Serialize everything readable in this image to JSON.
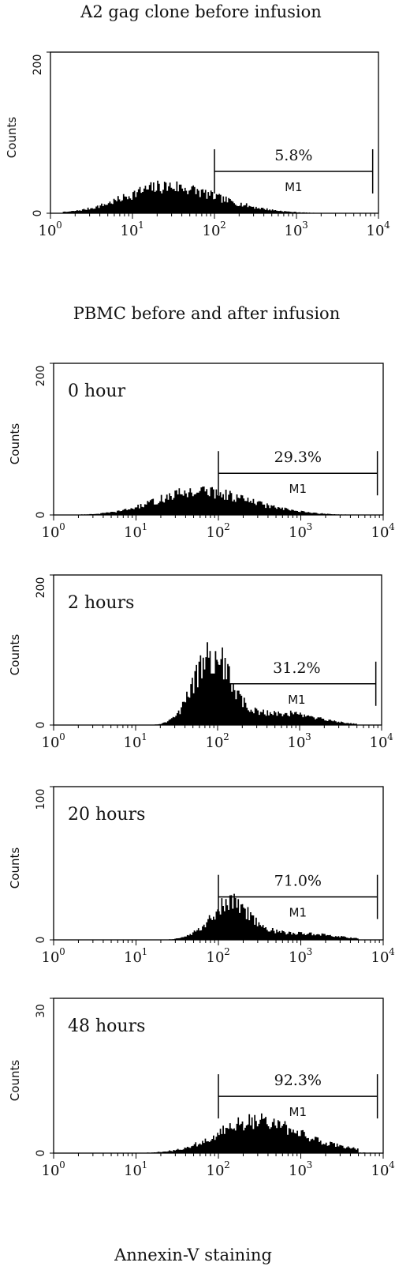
{
  "heading_top": "A2 gag clone before infusion",
  "heading_mid": "PBMC before and after infusion",
  "xlabel": "Annexin-V staining",
  "chart_data": [
    {
      "type": "histogram",
      "label": "",
      "ylabel": "Counts",
      "ylim": [
        0,
        200
      ],
      "yticks": [
        "0",
        "200"
      ],
      "xscale": "log",
      "xlim": [
        1,
        10000
      ],
      "xticks": [
        {
          "base": "10",
          "exp": "0"
        },
        {
          "base": "10",
          "exp": "1"
        },
        {
          "base": "10",
          "exp": "2"
        },
        {
          "base": "10",
          "exp": "3"
        },
        {
          "base": "10",
          "exp": "4"
        }
      ],
      "gate": {
        "name": "M1",
        "percent": "5.8%",
        "from": 100,
        "to": 8500,
        "level": 52,
        "label_level": 60
      },
      "peak": {
        "x": 25,
        "height": 32,
        "spread_decades": 0.5
      }
    },
    {
      "type": "histogram",
      "label": "0 hour",
      "ylabel": "Counts",
      "ylim": [
        0,
        200
      ],
      "yticks": [
        "0",
        "200"
      ],
      "xscale": "log",
      "xlim": [
        1,
        10000
      ],
      "xticks": [
        {
          "base": "10",
          "exp": "0"
        },
        {
          "base": "10",
          "exp": "1"
        },
        {
          "base": "10",
          "exp": "2"
        },
        {
          "base": "10",
          "exp": "3"
        },
        {
          "base": "10",
          "exp": "4"
        }
      ],
      "gate": {
        "name": "M1",
        "percent": "29.3%",
        "from": 100,
        "to": 8500,
        "level": 55,
        "label_level": 63
      },
      "peak": {
        "x": 55,
        "height": 30,
        "spread_decades": 0.5
      }
    },
    {
      "type": "histogram",
      "label": "2 hours",
      "ylabel": "Counts",
      "ylim": [
        0,
        200
      ],
      "yticks": [
        "0",
        "200"
      ],
      "xscale": "log",
      "xlim": [
        1,
        10000
      ],
      "xticks": [
        {
          "base": "10",
          "exp": "0"
        },
        {
          "base": "10",
          "exp": "1"
        },
        {
          "base": "10",
          "exp": "2"
        },
        {
          "base": "10",
          "exp": "3"
        },
        {
          "base": "10",
          "exp": "4"
        }
      ],
      "gate": {
        "name": "M1",
        "percent": "31.2%",
        "from": 100,
        "to": 8500,
        "level": 55,
        "label_level": 63
      },
      "peak": {
        "x": 85,
        "height": 90,
        "spread_decades": 0.22
      }
    },
    {
      "type": "histogram",
      "label": "20 hours",
      "ylabel": "Counts",
      "ylim": [
        0,
        100
      ],
      "yticks": [
        "0",
        "100"
      ],
      "xscale": "log",
      "xlim": [
        1,
        10000
      ],
      "xticks": [
        {
          "base": "10",
          "exp": "0"
        },
        {
          "base": "10",
          "exp": "1"
        },
        {
          "base": "10",
          "exp": "2"
        },
        {
          "base": "10",
          "exp": "3"
        },
        {
          "base": "10",
          "exp": "4"
        }
      ],
      "gate": {
        "name": "M1",
        "percent": "71.0%",
        "from": 100,
        "to": 8500,
        "level": 28,
        "label_level": 32
      },
      "peak": {
        "x": 140,
        "height": 23,
        "spread_decades": 0.25
      }
    },
    {
      "type": "histogram",
      "label": "48 hours",
      "ylabel": "Counts",
      "ylim": [
        0,
        30
      ],
      "yticks": [
        "0",
        "30"
      ],
      "xscale": "log",
      "xlim": [
        1,
        10000
      ],
      "xticks": [
        {
          "base": "10",
          "exp": "0"
        },
        {
          "base": "10",
          "exp": "1"
        },
        {
          "base": "10",
          "exp": "2"
        },
        {
          "base": "10",
          "exp": "3"
        },
        {
          "base": "10",
          "exp": "4"
        }
      ],
      "gate": {
        "name": "M1",
        "percent": "92.3%",
        "from": 100,
        "to": 8500,
        "level": 11,
        "label_level": 12.5
      },
      "peak": {
        "x": 280,
        "height": 6,
        "spread_decades": 0.45
      }
    }
  ]
}
